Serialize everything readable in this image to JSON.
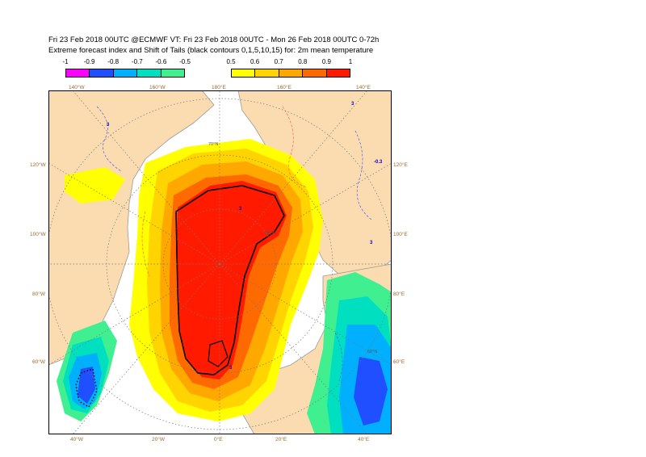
{
  "header": {
    "line1": "Fri 23 Feb 2018 00UTC @ECMWF VT: Fri 23 Feb 2018 00UTC - Mon 26 Feb 2018 00UTC  0-72h",
    "line2": "Extreme forecast index and Shift of Tails (black contours 0,1,5,10,15) for: 2m mean temperature"
  },
  "legend_negative": {
    "ticks": [
      "-1",
      "-0.9",
      "-0.8",
      "-0.7",
      "-0.6",
      "-0.5"
    ],
    "colors": [
      "#ff00ff",
      "#1f4fff",
      "#00b0ff",
      "#00e0c0",
      "#40f090"
    ]
  },
  "legend_positive": {
    "ticks": [
      "0.5",
      "0.6",
      "0.7",
      "0.8",
      "0.9",
      "1"
    ],
    "colors": [
      "#ffff00",
      "#ffd400",
      "#ffa800",
      "#ff6a00",
      "#ff1a00"
    ]
  },
  "map": {
    "top_lon_labels": [
      "140°W",
      "160°W",
      "180°E",
      "160°E",
      "140°E"
    ],
    "bottom_lon_labels": [
      "40°W",
      "20°W",
      "0°E",
      "20°E",
      "40°E"
    ],
    "left_lat_labels": [
      "120°W",
      "100°W",
      "80°W",
      "60°W"
    ],
    "right_lat_labels": [
      "120°E",
      "100°E",
      "80°E",
      "60°E"
    ],
    "grid_lat_labels": [
      "70°N",
      "80°N",
      "60°N"
    ],
    "contour_labels": [
      "-0.3",
      "3",
      "3",
      "3",
      "3",
      "3"
    ],
    "colors": {
      "land": "#fbdcb0",
      "ocean": "#ffffff",
      "coast": "#9a9a9a",
      "efi_yellow": "#ffff00",
      "efi_gold": "#ffd400",
      "efi_orange": "#ffa800",
      "efi_dark_orange": "#ff6a00",
      "efi_red": "#ff1a00",
      "neg_green": "#40f090",
      "neg_teal": "#00e0c0",
      "neg_cyan": "#00b0ff",
      "neg_blue": "#1f4fff"
    }
  }
}
